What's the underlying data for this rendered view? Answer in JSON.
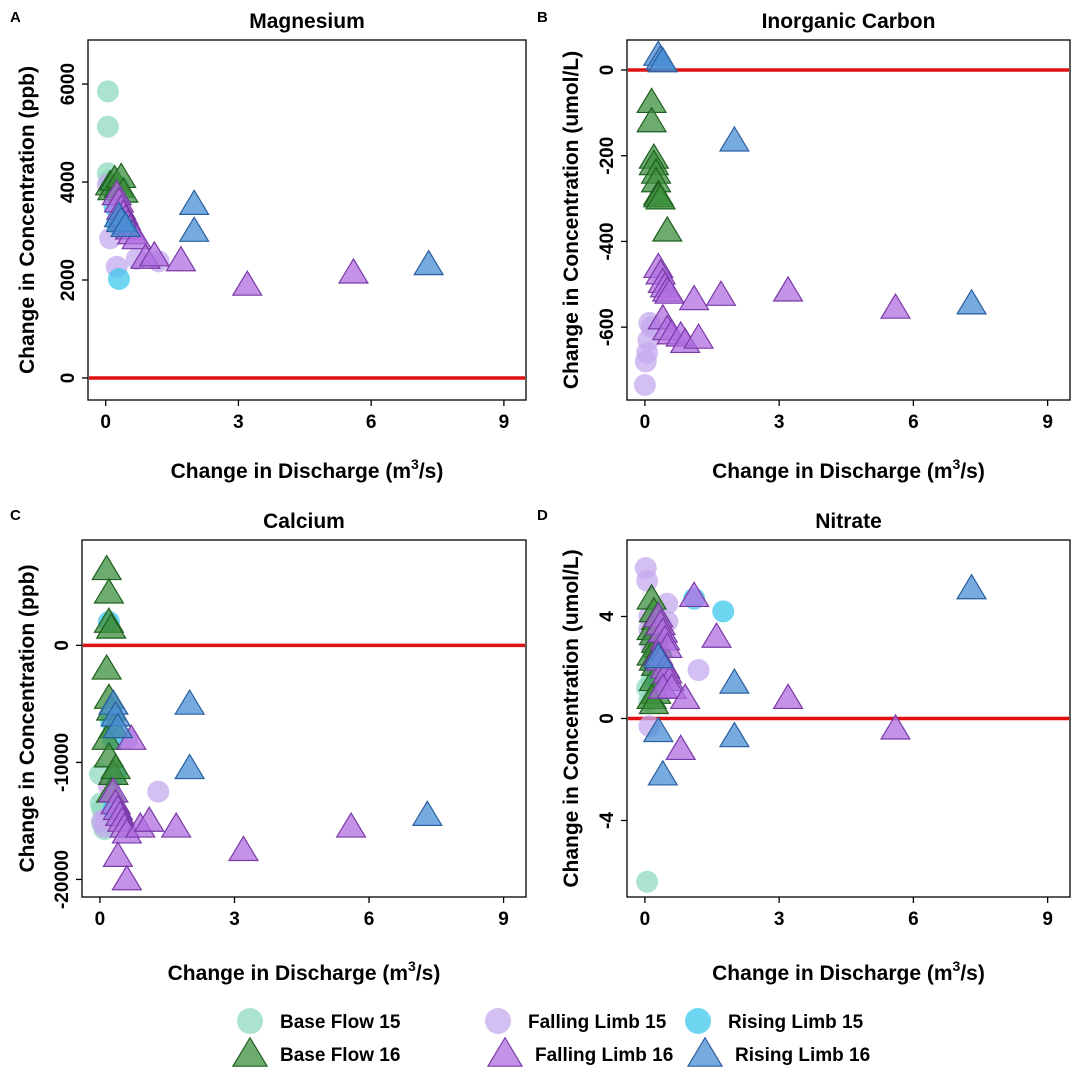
{
  "legend": {
    "items": [
      {
        "label": "Base Flow 15",
        "shape": "circle",
        "color": "#8fd9bf",
        "edge": "none"
      },
      {
        "label": "Falling Limb 15",
        "shape": "circle",
        "color": "#c4aaee",
        "edge": "none"
      },
      {
        "label": "Rising Limb 15",
        "shape": "circle",
        "color": "#3ec8ec",
        "edge": "none"
      },
      {
        "label": "Base Flow 16",
        "shape": "triangle",
        "color": "#3e8f3e",
        "edge": "#1f5f1f"
      },
      {
        "label": "Falling Limb 16",
        "shape": "triangle",
        "color": "#b06fe0",
        "edge": "#7a3aa8"
      },
      {
        "label": "Rising Limb 16",
        "shape": "triangle",
        "color": "#4a8fd6",
        "edge": "#2a5f9f"
      }
    ]
  },
  "chart_data": [
    {
      "type": "scatter",
      "panel": "A",
      "title": "Magnesium",
      "xlabel": "Change in Discharge (m",
      "xlabel_sup": "3",
      "xlabel_end": "/s)",
      "ylabel": "Change in Concentration (ppb)",
      "xlim": [
        -0.4,
        9.5
      ],
      "ylim": [
        -450,
        6900
      ],
      "xticks": [
        0,
        3,
        6,
        9
      ],
      "xtick_labels": [
        "0",
        "3",
        "6",
        "9"
      ],
      "yticks": [
        0,
        2000,
        4000,
        6000
      ],
      "ytick_labels": [
        "0",
        "2000",
        "4000",
        "6000"
      ],
      "hline": 0,
      "series": [
        {
          "name": "Base Flow 15",
          "x": [
            0.05,
            0.05,
            0.05,
            0.1,
            0.1
          ],
          "y": [
            5850,
            5130,
            4180,
            4050,
            3900
          ]
        },
        {
          "name": "Falling Limb 15",
          "x": [
            0.05,
            0.1,
            0.25,
            0.3,
            0.7,
            1.2
          ],
          "y": [
            3950,
            2850,
            2270,
            3200,
            2430,
            2380
          ]
        },
        {
          "name": "Rising Limb 15",
          "x": [
            0.15,
            0.2,
            0.25,
            0.3,
            0.3
          ],
          "y": [
            3850,
            3500,
            3150,
            2020,
            3900
          ]
        },
        {
          "name": "Base Flow 16",
          "x": [
            0.1,
            0.15,
            0.2,
            0.3,
            0.35,
            0.4
          ],
          "y": [
            3950,
            3850,
            4050,
            3900,
            4100,
            3800
          ]
        },
        {
          "name": "Falling Limb 16",
          "x": [
            0.25,
            0.3,
            0.35,
            0.4,
            0.45,
            0.5,
            0.55,
            0.6,
            0.7,
            0.9,
            1.1,
            1.7,
            3.2,
            5.6
          ],
          "y": [
            3750,
            3600,
            3450,
            3350,
            3250,
            3150,
            3050,
            2950,
            2850,
            2450,
            2500,
            2400,
            1900,
            2150
          ]
        },
        {
          "name": "Rising Limb 16",
          "x": [
            0.3,
            0.35,
            0.45,
            2.0,
            2.0,
            7.3
          ],
          "y": [
            3300,
            3200,
            3100,
            3550,
            3000,
            2320
          ]
        }
      ]
    },
    {
      "type": "scatter",
      "panel": "B",
      "title": "Inorganic Carbon",
      "xlabel": "Change in Discharge (m",
      "xlabel_sup": "3",
      "xlabel_end": "/s)",
      "ylabel": "Change in Concentration (umol/L)",
      "xlim": [
        -0.4,
        9.5
      ],
      "ylim": [
        -770,
        70
      ],
      "xticks": [
        0,
        3,
        6,
        9
      ],
      "xtick_labels": [
        "0",
        "3",
        "6",
        "9"
      ],
      "yticks": [
        0,
        -200,
        -400,
        -600
      ],
      "ytick_labels": [
        "0",
        "-200",
        "-400",
        "-600"
      ],
      "hline": 0,
      "series": [
        {
          "name": "Base Flow 15",
          "x": [],
          "y": []
        },
        {
          "name": "Falling Limb 15",
          "x": [
            0.0,
            0.02,
            0.05,
            0.08,
            0.1,
            0.15
          ],
          "y": [
            -735,
            -680,
            -660,
            -630,
            -590,
            -600
          ]
        },
        {
          "name": "Rising Limb 15",
          "x": [],
          "y": []
        },
        {
          "name": "Base Flow 16",
          "x": [
            0.15,
            0.15,
            0.2,
            0.2,
            0.25,
            0.25,
            0.3,
            0.3,
            0.35,
            0.5
          ],
          "y": [
            -75,
            -120,
            -205,
            -220,
            -240,
            -260,
            -290,
            -295,
            -300,
            -375
          ]
        },
        {
          "name": "Falling Limb 16",
          "x": [
            0.3,
            0.35,
            0.4,
            0.45,
            0.5,
            0.55,
            0.4,
            0.5,
            0.6,
            0.8,
            0.9,
            1.1,
            1.2,
            1.7,
            3.2,
            5.6
          ],
          "y": [
            -460,
            -475,
            -495,
            -505,
            -515,
            -520,
            -580,
            -605,
            -615,
            -620,
            -635,
            -535,
            -625,
            -525,
            -515,
            -555
          ]
        },
        {
          "name": "Rising Limb 16",
          "x": [
            0.3,
            0.35,
            0.4,
            2.0,
            7.3
          ],
          "y": [
            35,
            25,
            20,
            -165,
            -545
          ]
        }
      ]
    },
    {
      "type": "scatter",
      "panel": "C",
      "title": "Calcium",
      "xlabel": "Change in Discharge (m",
      "xlabel_sup": "3",
      "xlabel_end": "/s)",
      "ylabel": "Change in Concentration (ppb)",
      "xlim": [
        -0.4,
        9.5
      ],
      "ylim": [
        -21500,
        9000
      ],
      "xticks": [
        0,
        3,
        6,
        9
      ],
      "xtick_labels": [
        "0",
        "3",
        "6",
        "9"
      ],
      "yticks": [
        0,
        -10000,
        -20000
      ],
      "ytick_labels": [
        "0",
        "-10000",
        "-20000"
      ],
      "hline": 0,
      "series": [
        {
          "name": "Base Flow 15",
          "x": [
            0.0,
            0.02,
            0.05,
            0.1,
            0.05
          ],
          "y": [
            -11000,
            -13500,
            -15200,
            -15700,
            -14000
          ]
        },
        {
          "name": "Falling Limb 15",
          "x": [
            0.05,
            0.1,
            0.15,
            0.2,
            0.6,
            1.3
          ],
          "y": [
            -15000,
            -15500,
            -14800,
            -12000,
            -8000,
            -12500
          ]
        },
        {
          "name": "Rising Limb 15",
          "x": [
            0.2,
            0.25,
            0.3,
            0.35,
            0.3
          ],
          "y": [
            2000,
            -6500,
            -8000,
            -11000,
            -14000
          ]
        },
        {
          "name": "Base Flow 16",
          "x": [
            0.15,
            0.2,
            0.2,
            0.25,
            0.15,
            0.2,
            0.25,
            0.3,
            0.15,
            0.2,
            0.3,
            0.35,
            0.25
          ],
          "y": [
            6500,
            4500,
            2000,
            1500,
            -2000,
            -4500,
            -5500,
            -7000,
            -8000,
            -9500,
            -11000,
            -10500,
            -12500
          ]
        },
        {
          "name": "Falling Limb 16",
          "x": [
            0.3,
            0.35,
            0.4,
            0.45,
            0.5,
            0.55,
            0.6,
            0.7,
            0.9,
            1.1,
            0.4,
            0.6,
            1.7,
            3.2,
            5.6
          ],
          "y": [
            -12500,
            -13500,
            -14000,
            -14500,
            -15000,
            -15500,
            -16000,
            -8000,
            -15500,
            -15000,
            -18000,
            -20000,
            -15500,
            -17500,
            -15500
          ]
        },
        {
          "name": "Rising Limb 16",
          "x": [
            0.3,
            0.35,
            0.4,
            2.0,
            2.0,
            7.3
          ],
          "y": [
            -5000,
            -6000,
            -7000,
            -5000,
            -10500,
            -14500
          ]
        }
      ]
    },
    {
      "type": "scatter",
      "panel": "D",
      "title": "Nitrate",
      "xlabel": "Change in Discharge (m",
      "xlabel_sup": "3",
      "xlabel_end": "/s)",
      "ylabel": "Change in Concentration (umol/L)",
      "xlim": [
        -0.4,
        9.5
      ],
      "ylim": [
        -7.0,
        7.0
      ],
      "xticks": [
        0,
        3,
        6,
        9
      ],
      "xtick_labels": [
        "0",
        "3",
        "6",
        "9"
      ],
      "yticks": [
        4,
        0,
        -4
      ],
      "ytick_labels": [
        "4",
        "0",
        "-4"
      ],
      "hline": 0,
      "series": [
        {
          "name": "Base Flow 15",
          "x": [
            0.05,
            0.1,
            0.15,
            0.2,
            0.05
          ],
          "y": [
            1.2,
            0.7,
            1.5,
            1.8,
            -6.4
          ]
        },
        {
          "name": "Falling Limb 15",
          "x": [
            0.02,
            0.05,
            0.1,
            0.1,
            0.15,
            0.2,
            0.5,
            0.5,
            1.2,
            0.1
          ],
          "y": [
            5.9,
            5.4,
            4.0,
            3.5,
            2.8,
            2.0,
            4.5,
            3.8,
            1.9,
            -0.3
          ]
        },
        {
          "name": "Rising Limb 15",
          "x": [
            1.1,
            1.75,
            0.3
          ],
          "y": [
            4.7,
            4.2,
            1.5
          ]
        },
        {
          "name": "Base Flow 16",
          "x": [
            0.15,
            0.2,
            0.25,
            0.15,
            0.2,
            0.25,
            0.3,
            0.15,
            0.2,
            0.25,
            0.2,
            0.25,
            0.15,
            0.2
          ],
          "y": [
            4.7,
            4.2,
            3.9,
            3.5,
            3.3,
            3.0,
            2.8,
            2.5,
            2.3,
            2.1,
            1.5,
            1.0,
            0.8,
            0.6
          ]
        },
        {
          "name": "Falling Limb 16",
          "x": [
            0.3,
            0.35,
            0.4,
            0.45,
            0.5,
            0.3,
            0.35,
            0.45,
            0.5,
            0.55,
            0.4,
            0.6,
            1.1,
            0.9,
            1.6,
            3.2,
            5.6,
            0.8
          ],
          "y": [
            4.0,
            3.7,
            3.4,
            3.1,
            2.8,
            2.5,
            2.3,
            2.0,
            1.8,
            1.5,
            1.2,
            1.2,
            4.8,
            0.8,
            3.2,
            0.8,
            -0.4,
            -1.2
          ]
        },
        {
          "name": "Rising Limb 16",
          "x": [
            0.3,
            0.4,
            2.0,
            2.0,
            0.3,
            7.3
          ],
          "y": [
            -0.5,
            -2.2,
            1.4,
            -0.7,
            2.4,
            5.1
          ]
        }
      ]
    }
  ]
}
